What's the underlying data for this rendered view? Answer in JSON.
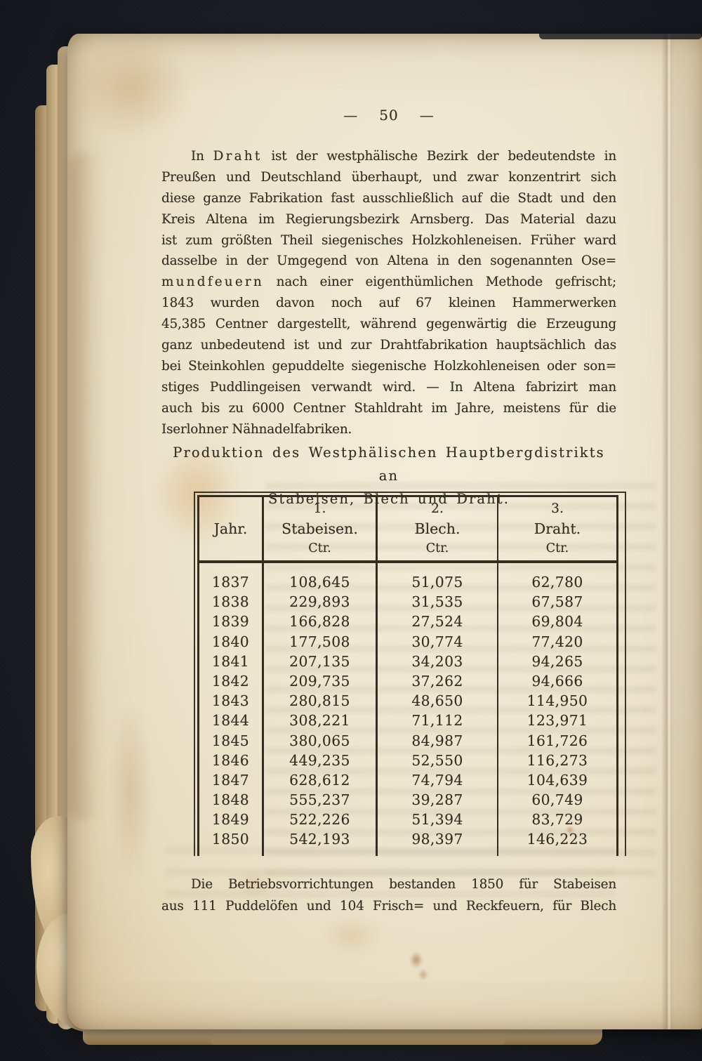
{
  "colors": {
    "paper": "#ece3cd",
    "ink": "#342e23",
    "background": "#191c22",
    "table_rule": "#332c20"
  },
  "page_header": {
    "dash_left": "—",
    "number": "50",
    "dash_right": "—"
  },
  "paragraph1": {
    "lines": [
      {
        "pre": "In ",
        "sperr": "Draht",
        "post": " ist der westphälische Bezirk der bedeutendste in",
        "cls": "indent"
      },
      {
        "post": "Preußen und Deutschland überhaupt, und zwar konzentrirt sich"
      },
      {
        "post": "diese ganze Fabrikation fast ausschließlich auf die Stadt und den"
      },
      {
        "post": "Kreis Altena im Regierungsbezirk Arnsberg. Das Material dazu"
      },
      {
        "post": "ist zum größten Theil siegenisches Holzkohleneisen. Früher ward"
      },
      {
        "post": "dasselbe in der Umgegend von Altena in den sogenannten Ose="
      },
      {
        "sperr": "mundfeuern",
        "post": " nach einer eigenthümlichen Methode gefrischt;"
      },
      {
        "post": "1843 wurden davon noch auf 67 kleinen Hammerwerken"
      },
      {
        "post": "45,385 Centner dargestellt, während gegenwärtig die Erzeugung"
      },
      {
        "post": "ganz unbedeutend ist und zur Drahtfabrikation hauptsächlich das"
      },
      {
        "post": "bei Steinkohlen gepuddelte siegenische Holzkohleneisen oder son="
      },
      {
        "post": "stiges Puddlingeisen verwandt wird. — In Altena fabrizirt man"
      },
      {
        "post": "auch bis zu 6000 Centner Stahldraht im Jahre, meistens für die"
      },
      {
        "post": "Iserlohner Nähnadelfabriken.",
        "cls": "lastline"
      }
    ]
  },
  "table_title": {
    "line1": "Produktion des Westphälischen Hauptbergdistrikts an",
    "line2": "Stabeisen, Blech und Draht."
  },
  "table": {
    "year_header": "Jahr.",
    "columns": [
      {
        "num": "1.",
        "name": "Stabeisen.",
        "unit": "Ctr."
      },
      {
        "num": "2.",
        "name": "Blech.",
        "unit": "Ctr."
      },
      {
        "num": "3.",
        "name": "Draht.",
        "unit": "Ctr."
      }
    ],
    "rows": [
      {
        "year": "1837",
        "stabeisen": "108,645",
        "blech": "51,075",
        "draht": "62,780"
      },
      {
        "year": "1838",
        "stabeisen": "229,893",
        "blech": "31,535",
        "draht": "67,587"
      },
      {
        "year": "1839",
        "stabeisen": "166,828",
        "blech": "27,524",
        "draht": "69,804"
      },
      {
        "year": "1840",
        "stabeisen": "177,508",
        "blech": "30,774",
        "draht": "77,420"
      },
      {
        "year": "1841",
        "stabeisen": "207,135",
        "blech": "34,203",
        "draht": "94,265"
      },
      {
        "year": "1842",
        "stabeisen": "209,735",
        "blech": "37,262",
        "draht": "94,666"
      },
      {
        "year": "1843",
        "stabeisen": "280,815",
        "blech": "48,650",
        "draht": "114,950"
      },
      {
        "year": "1844",
        "stabeisen": "308,221",
        "blech": "71,112",
        "draht": "123,971"
      },
      {
        "year": "1845",
        "stabeisen": "380,065",
        "blech": "84,987",
        "draht": "161,726"
      },
      {
        "year": "1846",
        "stabeisen": "449,235",
        "blech": "52,550",
        "draht": "116,273"
      },
      {
        "year": "1847",
        "stabeisen": "628,612",
        "blech": "74,794",
        "draht": "104,639"
      },
      {
        "year": "1848",
        "stabeisen": "555,237",
        "blech": "39,287",
        "draht": "60,749"
      },
      {
        "year": "1849",
        "stabeisen": "522,226",
        "blech": "51,394",
        "draht": "83,729"
      },
      {
        "year": "1850",
        "stabeisen": "542,193",
        "blech": "98,397",
        "draht": "146,223"
      }
    ]
  },
  "paragraph2": {
    "lines": [
      {
        "post": "Die Betriebsvorrichtungen bestanden 1850 für Stabeisen",
        "cls": "indent"
      },
      {
        "post": "aus 111 Puddelöfen und 104 Frisch= und Reckfeuern, für Blech"
      }
    ]
  }
}
